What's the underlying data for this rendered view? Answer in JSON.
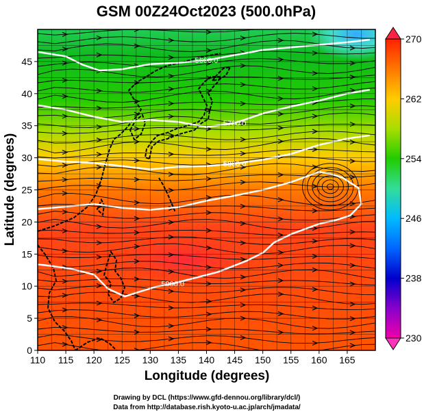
{
  "chart_data": {
    "type": "heatmap",
    "title": "GSM 00Z24Oct2023 (500.0hPa)",
    "xlabel": "Longitude (degrees)",
    "ylabel": "Latitude  (degrees)",
    "xlim": [
      110,
      170
    ],
    "ylim": [
      0,
      50
    ],
    "x_ticks": [
      110,
      115,
      120,
      125,
      130,
      135,
      140,
      145,
      150,
      155,
      160,
      165
    ],
    "y_ticks": [
      0,
      5,
      10,
      15,
      20,
      25,
      30,
      35,
      40,
      45
    ],
    "grid": true,
    "colorbar": {
      "range": [
        230,
        270
      ],
      "ticks": [
        230,
        238,
        246,
        254,
        262,
        270
      ],
      "placement": "right"
    },
    "contours": [
      {
        "label": "5600.0",
        "points": [
          [
            110,
            46.5
          ],
          [
            115,
            45.8
          ],
          [
            118,
            44.5
          ],
          [
            121,
            43.6
          ],
          [
            125,
            43.8
          ],
          [
            130,
            44.6
          ],
          [
            135,
            44.8
          ],
          [
            140,
            45.2
          ],
          [
            145,
            46
          ],
          [
            150,
            46.8
          ],
          [
            155,
            47.2
          ],
          [
            160,
            47.6
          ],
          [
            165,
            48
          ],
          [
            169,
            48.4
          ]
        ]
      },
      {
        "label": "5700.0",
        "points": [
          [
            110,
            38.2
          ],
          [
            115,
            37.5
          ],
          [
            120,
            36.4
          ],
          [
            125,
            35.6
          ],
          [
            130,
            35.9
          ],
          [
            135,
            35.6
          ],
          [
            140,
            34.8
          ],
          [
            145,
            35.4
          ],
          [
            150,
            36.9
          ],
          [
            155,
            38
          ],
          [
            160,
            38.9
          ],
          [
            165,
            40
          ],
          [
            169,
            40.6
          ]
        ]
      },
      {
        "label": "5800.0",
        "points": [
          [
            110,
            29.8
          ],
          [
            115,
            29.4
          ],
          [
            120,
            29.2
          ],
          [
            125,
            28.7
          ],
          [
            130,
            28.2
          ],
          [
            135,
            28.6
          ],
          [
            140,
            28.7
          ],
          [
            145,
            29.1
          ],
          [
            150,
            29.7
          ],
          [
            155,
            30.6
          ],
          [
            160,
            32
          ],
          [
            165,
            33
          ],
          [
            169,
            33.5
          ]
        ]
      },
      {
        "label": "5900.0",
        "points": [
          [
            110,
            22
          ],
          [
            115,
            22.4
          ],
          [
            120,
            22.8
          ],
          [
            125,
            22.2
          ],
          [
            130,
            21.9
          ],
          [
            135,
            22.3
          ],
          [
            140,
            23.3
          ],
          [
            145,
            24.1
          ],
          [
            150,
            25
          ],
          [
            155,
            26.2
          ],
          [
            160,
            27.8
          ],
          [
            162,
            27.5
          ],
          [
            164.2,
            26.9
          ],
          [
            167,
            25.3
          ],
          [
            167.5,
            22.8
          ],
          [
            165.5,
            21
          ],
          [
            163,
            20.3
          ],
          [
            160,
            19.7
          ],
          [
            155,
            18.1
          ],
          [
            152,
            16.8
          ],
          [
            150,
            15.2
          ],
          [
            147,
            13.9
          ],
          [
            142,
            12.2
          ],
          [
            138,
            11.3
          ],
          [
            134,
            10.4
          ],
          [
            131,
            9.9
          ],
          [
            128,
            9.1
          ],
          [
            125.5,
            8.4
          ],
          [
            122.5,
            9.6
          ],
          [
            120,
            11.8
          ],
          [
            116,
            12.7
          ],
          [
            112,
            13.2
          ],
          [
            110,
            13.4
          ]
        ]
      }
    ]
  }
}
